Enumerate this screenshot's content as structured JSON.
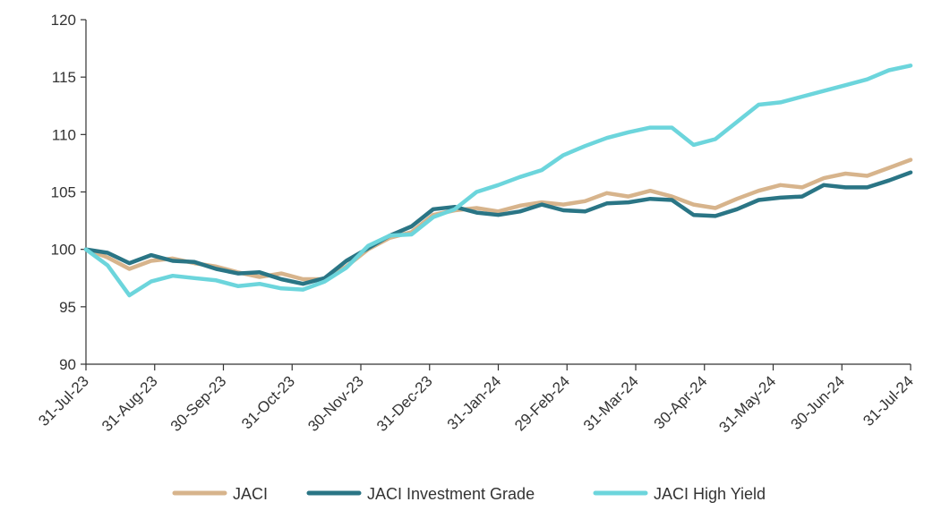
{
  "chart_data": {
    "type": "line",
    "title": "",
    "xlabel": "",
    "ylabel": "",
    "ylim": [
      90,
      120
    ],
    "yticks": [
      90,
      95,
      100,
      105,
      110,
      115,
      120
    ],
    "xtick_labels": [
      "31-Jul-23",
      "31-Aug-23",
      "30-Sep-23",
      "31-Oct-23",
      "30-Nov-23",
      "31-Dec-23",
      "31-Jan-24",
      "29-Feb-24",
      "31-Mar-24",
      "30-Apr-24",
      "31-May-24",
      "30-Jun-24",
      "31-Jul-24"
    ],
    "legend_position": "bottom",
    "grid": false,
    "series": [
      {
        "name": "JACI",
        "color": "#d7b48c",
        "values": [
          100.0,
          99.3,
          98.3,
          99.0,
          99.2,
          98.8,
          98.5,
          98.0,
          97.6,
          97.9,
          97.4,
          97.4,
          98.5,
          100.0,
          101.0,
          101.5,
          103.0,
          103.4,
          103.6,
          103.3,
          103.8,
          104.1,
          103.9,
          104.2,
          104.9,
          104.6,
          105.1,
          104.6,
          103.9,
          103.6,
          104.4,
          105.1,
          105.6,
          105.4,
          106.2,
          106.6,
          106.4,
          107.1,
          107.8
        ]
      },
      {
        "name": "JACI Investment Grade",
        "color": "#2a7585",
        "values": [
          100.0,
          99.7,
          98.8,
          99.5,
          99.0,
          98.9,
          98.3,
          97.9,
          98.0,
          97.4,
          97.0,
          97.5,
          99.0,
          100.1,
          101.2,
          102.0,
          103.5,
          103.7,
          103.2,
          103.0,
          103.3,
          103.9,
          103.4,
          103.3,
          104.0,
          104.1,
          104.4,
          104.3,
          103.0,
          102.9,
          103.5,
          104.3,
          104.5,
          104.6,
          105.6,
          105.4,
          105.4,
          106.0,
          106.7
        ]
      },
      {
        "name": "JACI High Yield",
        "color": "#6cd5dc",
        "values": [
          100.0,
          98.6,
          96.0,
          97.2,
          97.7,
          97.5,
          97.3,
          96.8,
          97.0,
          96.6,
          96.5,
          97.2,
          98.4,
          100.3,
          101.2,
          101.3,
          102.8,
          103.5,
          105.0,
          105.6,
          106.3,
          106.9,
          108.2,
          109.0,
          109.7,
          110.2,
          110.6,
          110.6,
          109.1,
          109.6,
          111.1,
          112.6,
          112.8,
          113.3,
          113.8,
          114.3,
          114.8,
          115.6,
          116.0
        ]
      }
    ]
  }
}
